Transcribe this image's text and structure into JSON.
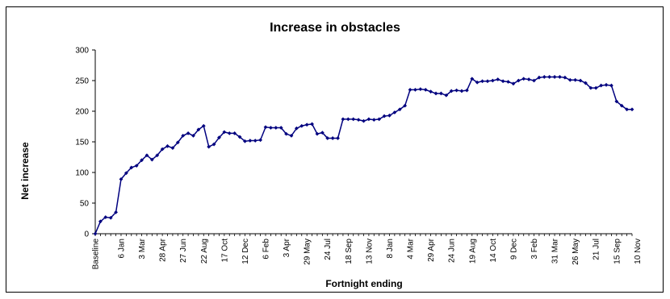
{
  "chart_data": {
    "type": "line",
    "title": "Increase in obstacles",
    "xlabel": "Fortnight ending",
    "ylabel": "Net increase",
    "ylim": [
      0,
      300
    ],
    "yticks": [
      0,
      50,
      100,
      150,
      200,
      250,
      300
    ],
    "grid": false,
    "legend": "none",
    "x_tick_labels": [
      {
        "index": 0,
        "label": "Baseline"
      },
      {
        "index": 5,
        "label": "6 Jan"
      },
      {
        "index": 9,
        "label": "3 Mar"
      },
      {
        "index": 13,
        "label": "28 Apr"
      },
      {
        "index": 17,
        "label": "27 Jun"
      },
      {
        "index": 21,
        "label": "22 Aug"
      },
      {
        "index": 25,
        "label": "17 Oct"
      },
      {
        "index": 29,
        "label": "12 Dec"
      },
      {
        "index": 33,
        "label": "6 Feb"
      },
      {
        "index": 37,
        "label": "3 Apr"
      },
      {
        "index": 41,
        "label": "29 May"
      },
      {
        "index": 45,
        "label": "24 Jul"
      },
      {
        "index": 49,
        "label": "18 Sep"
      },
      {
        "index": 53,
        "label": "13 Nov"
      },
      {
        "index": 57,
        "label": "8 Jan"
      },
      {
        "index": 61,
        "label": "4 Mar"
      },
      {
        "index": 65,
        "label": "29 Apr"
      },
      {
        "index": 69,
        "label": "24 Jun"
      },
      {
        "index": 73,
        "label": "19 Aug"
      },
      {
        "index": 77,
        "label": "14 Oct"
      },
      {
        "index": 81,
        "label": "9 Dec"
      },
      {
        "index": 85,
        "label": "3 Feb"
      },
      {
        "index": 89,
        "label": "31 Mar"
      },
      {
        "index": 93,
        "label": "26 May"
      },
      {
        "index": 97,
        "label": "21 Jul"
      },
      {
        "index": 101,
        "label": "15 Sep"
      },
      {
        "index": 105,
        "label": "10 Nov"
      }
    ],
    "series": [
      {
        "values": [
          0,
          20,
          27,
          26,
          35,
          89,
          99,
          108,
          111,
          120,
          128,
          121,
          128,
          138,
          143,
          140,
          149,
          160,
          164,
          160,
          170,
          176,
          142,
          146,
          157,
          166,
          164,
          164,
          158,
          151,
          152,
          152,
          153,
          174,
          173,
          173,
          173,
          163,
          160,
          172,
          176,
          178,
          179,
          163,
          165,
          156,
          156,
          156,
          187,
          187,
          187,
          186,
          184,
          187,
          186,
          187,
          192,
          193,
          198,
          203,
          209,
          235,
          235,
          236,
          235,
          232,
          229,
          229,
          226,
          233,
          234,
          233,
          234,
          253,
          247,
          249,
          249,
          250,
          252,
          249,
          248,
          245,
          250,
          253,
          252,
          250,
          255,
          256,
          256,
          256,
          256,
          255,
          251,
          251,
          250,
          246,
          238,
          238,
          242,
          243,
          242,
          216,
          209,
          203,
          203
        ]
      }
    ],
    "colors": {
      "line": "#00007f",
      "marker": "#00007f"
    }
  }
}
